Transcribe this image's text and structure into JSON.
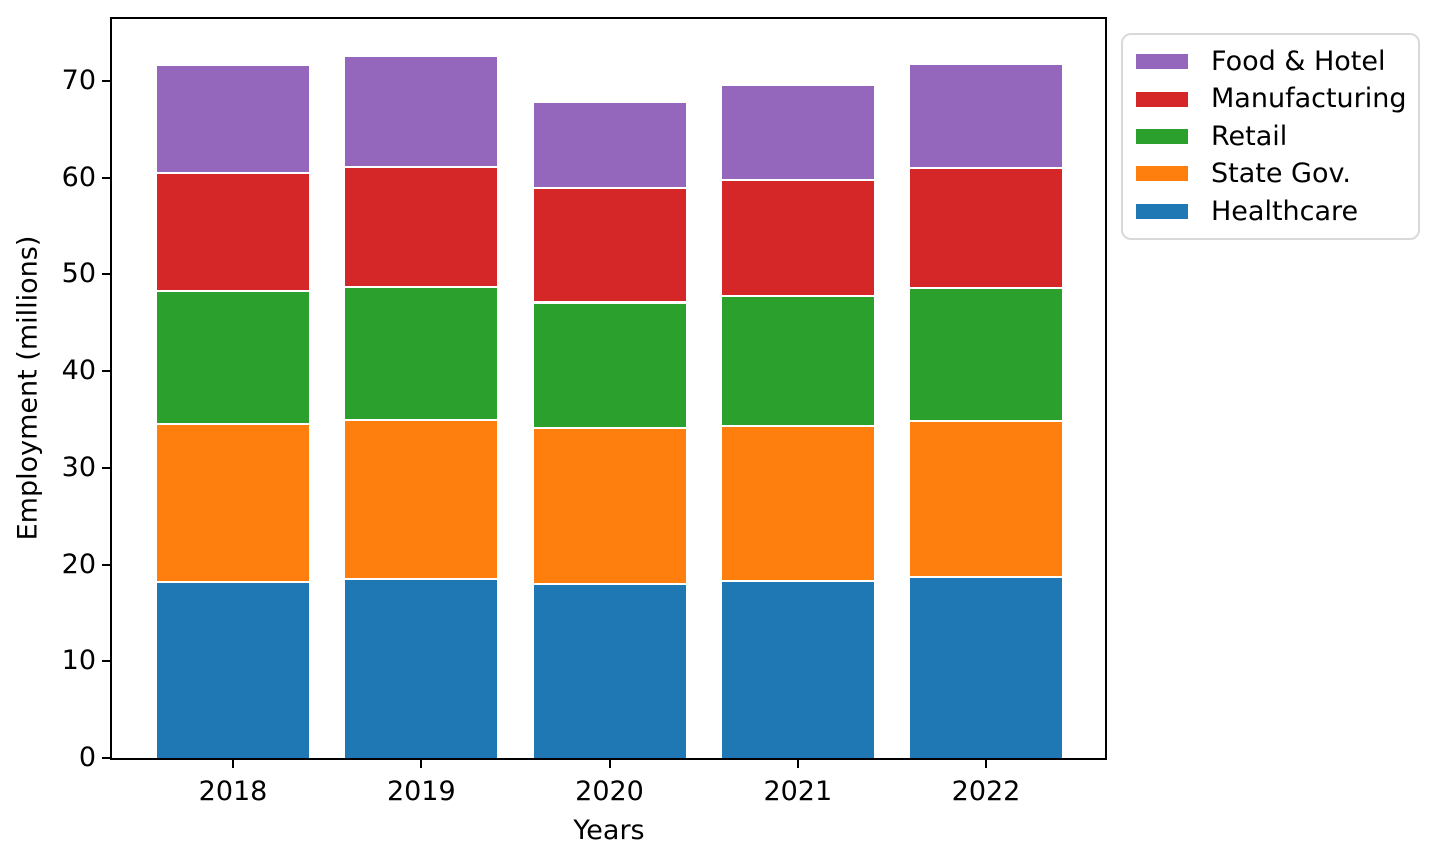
{
  "chart_data": {
    "type": "bar",
    "stacked": true,
    "xlabel": "Years",
    "ylabel": "Employment (millions)",
    "categories": [
      "2018",
      "2019",
      "2020",
      "2021",
      "2022"
    ],
    "series": [
      {
        "name": "Healthcare",
        "color": "#1f77b4",
        "values": [
          18.3,
          18.6,
          18.1,
          18.4,
          18.8
        ]
      },
      {
        "name": "State Gov.",
        "color": "#ff7f0e",
        "values": [
          16.3,
          16.5,
          16.1,
          16.0,
          16.2
        ]
      },
      {
        "name": "Retail",
        "color": "#2ca02c",
        "values": [
          13.8,
          13.7,
          13.0,
          13.5,
          13.7
        ]
      },
      {
        "name": "Manufacturing",
        "color": "#d62728",
        "values": [
          12.2,
          12.4,
          11.8,
          12.0,
          12.4
        ]
      },
      {
        "name": "Food & Hotel",
        "color": "#9467bd",
        "values": [
          11.2,
          11.5,
          8.9,
          9.8,
          10.8
        ]
      }
    ],
    "stack_order_bottom_to_top": [
      "Healthcare",
      "State Gov.",
      "Retail",
      "Manufacturing",
      "Food & Hotel"
    ],
    "totals": [
      71.8,
      72.7,
      67.9,
      69.7,
      71.9
    ],
    "y_ticks": [
      0,
      10,
      20,
      30,
      40,
      50,
      60,
      70
    ],
    "ylim": [
      0,
      76.4
    ],
    "grid": false,
    "segment_edge_color": "#ffffff",
    "legend": {
      "position": "upper-right-outside",
      "entries_top_to_bottom": [
        "Food & Hotel",
        "Manufacturing",
        "Retail",
        "State Gov.",
        "Healthcare"
      ],
      "border_color": "#d9d9d9",
      "background": "#ffffff"
    }
  }
}
